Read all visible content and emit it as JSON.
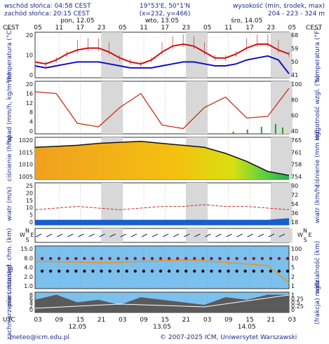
{
  "header": {
    "sunrise": "wschód słońca: 04:58 CEST",
    "sunset": "zachód słońca: 20:15 CEST",
    "coords": "19°53'E, 50°1'N",
    "grid": "(x=232, y=466)",
    "elev_label": "wysokość (min, środek, max)",
    "elev_value": "204 - 223 - 324 m"
  },
  "top_axis": {
    "tz": "CEST",
    "hours": [
      "05",
      "11",
      "17",
      "23",
      "05",
      "11",
      "17",
      "23",
      "05",
      "11",
      "17",
      "23",
      "05"
    ],
    "days": [
      "pon, 12.05",
      "wto, 13.05",
      "śro, 14.05"
    ]
  },
  "bottom_axis": {
    "tz": "UTC",
    "hours": [
      "03",
      "09",
      "15",
      "21",
      "03",
      "09",
      "15",
      "21",
      "03",
      "09",
      "15",
      "21",
      "03"
    ],
    "days": [
      "12.05",
      "13.05",
      "14.05"
    ]
  },
  "footer": {
    "email": "meteo@icm.edu.pl",
    "copyright": "© 2007-2025 ICM, Uniwersytet Warszawski"
  },
  "panels": {
    "temp": {
      "left": "temperatura (°C)",
      "right": "temperatura (°F)",
      "lticks": [
        "20",
        "10",
        "0"
      ],
      "rticks": [
        "68",
        "59",
        "50",
        "41"
      ]
    },
    "precip": {
      "left": "opad (mm/h, kg/m²/h)",
      "right": "wilgotność wzgl. (%)",
      "lticks": [
        "20",
        "16",
        "12",
        "8",
        "4",
        "0"
      ],
      "rticks": [
        "100",
        "80",
        "60",
        "40"
      ]
    },
    "pressure": {
      "left": "ciśnienie (hPa)",
      "right": "ciśnienie (mm Hg)",
      "lticks": [
        "1020",
        "1015",
        "1010",
        "1005"
      ],
      "rticks": [
        "765",
        "761",
        "758",
        "754"
      ]
    },
    "wind": {
      "left": "wiatr (m/s)",
      "right": "wiatr (km/h)",
      "lticks": [
        "25",
        "20",
        "15",
        "10",
        "5",
        "0"
      ],
      "rticks": [
        "90",
        "72",
        "54",
        "36",
        "18"
      ]
    },
    "winddir": {
      "left_letters": [
        "W",
        "N",
        "S",
        "E"
      ],
      "right_letters": [
        "W",
        "N",
        "S",
        "E"
      ]
    },
    "vis": {
      "left": "pion. rozciągł. chm. (km)",
      "right": "widzialność (km)",
      "lticks": [
        "15.0",
        "8.0",
        "4.0",
        "2.0",
        "1.0"
      ],
      "rticks": [
        "100",
        "10",
        "5",
        "2",
        "1"
      ]
    },
    "cloud": {
      "left": "zachmurzenie (oktanty)",
      "right": "(frakcja) mgła",
      "lticks": [
        "8",
        "6",
        "4",
        "2",
        "0"
      ],
      "rticks": [
        "1",
        "0.75",
        "0.5",
        "0.25",
        "0"
      ]
    }
  },
  "chart_data": [
    {
      "type": "line",
      "title": "",
      "ylabel": "temperatura (°C)",
      "ylim": [
        -3,
        20
      ],
      "x_hours_from_start": [
        0,
        3,
        6,
        9,
        12,
        15,
        18,
        21,
        24,
        27,
        30,
        33,
        36,
        39,
        42,
        45,
        48,
        51,
        54,
        57,
        60,
        63,
        66,
        69,
        72
      ],
      "series": [
        {
          "values": [
            5,
            4,
            6,
            9,
            11,
            12,
            12,
            10,
            7,
            5,
            4,
            6,
            10,
            13,
            14,
            13,
            10,
            7,
            7,
            9,
            12,
            14,
            14,
            11,
            9
          ]
        },
        {
          "values": [
            3,
            2,
            3,
            4,
            5,
            5,
            5,
            4,
            3,
            2,
            2,
            2,
            3,
            4,
            5,
            5,
            4,
            3,
            3,
            4,
            6,
            7,
            8,
            6,
            -1
          ]
        }
      ]
    },
    {
      "type": "line",
      "ylabel": "wilgotność wzgl. (%)",
      "ylim": [
        40,
        100
      ],
      "x_hours_from_start": [
        0,
        6,
        12,
        18,
        24,
        30,
        36,
        42,
        48,
        54,
        60,
        66,
        72
      ],
      "values": [
        88,
        86,
        52,
        48,
        70,
        86,
        50,
        46,
        70,
        82,
        58,
        60,
        92
      ]
    },
    {
      "type": "area",
      "ylabel": "ciśnienie (hPa)",
      "ylim": [
        1002,
        1023
      ],
      "x_hours_from_start": [
        0,
        6,
        12,
        18,
        24,
        30,
        36,
        42,
        48,
        54,
        60,
        66,
        72
      ],
      "values": [
        1018,
        1018.5,
        1019,
        1020,
        1020.5,
        1021,
        1020,
        1019,
        1018,
        1015,
        1011,
        1006,
        1004
      ]
    },
    {
      "type": "line",
      "ylabel": "wiatr (m/s)",
      "ylim": [
        0,
        25
      ],
      "x_hours_from_start": [
        0,
        6,
        12,
        18,
        24,
        30,
        36,
        42,
        48,
        54,
        60,
        66,
        72
      ],
      "series": [
        {
          "values": [
            3,
            3,
            3,
            3,
            3,
            3,
            3,
            3,
            3,
            3,
            3,
            3,
            4
          ]
        },
        {
          "values": [
            9,
            10,
            11,
            10,
            9,
            10,
            11,
            11,
            12,
            11,
            11,
            10,
            9
          ]
        }
      ]
    },
    {
      "type": "area",
      "ylabel": "zachmurzenie (oktanty)",
      "ylim": [
        0,
        8
      ],
      "x_hours_from_start": [
        0,
        6,
        12,
        18,
        24,
        30,
        36,
        42,
        48,
        54,
        60,
        66,
        72
      ],
      "values": [
        5,
        7,
        4,
        5,
        3,
        6,
        5,
        4,
        3,
        6,
        5,
        7,
        7
      ]
    }
  ],
  "colors": {
    "grid_shade": "#d8d8d8",
    "temp_max": "#d01010",
    "temp_mean": "#1010c0",
    "humidity": "#c83018",
    "wind": "#1460d0",
    "sky": "#7cc0ee",
    "cloud": "#5a5a5a",
    "text": "#1e2a8a"
  }
}
